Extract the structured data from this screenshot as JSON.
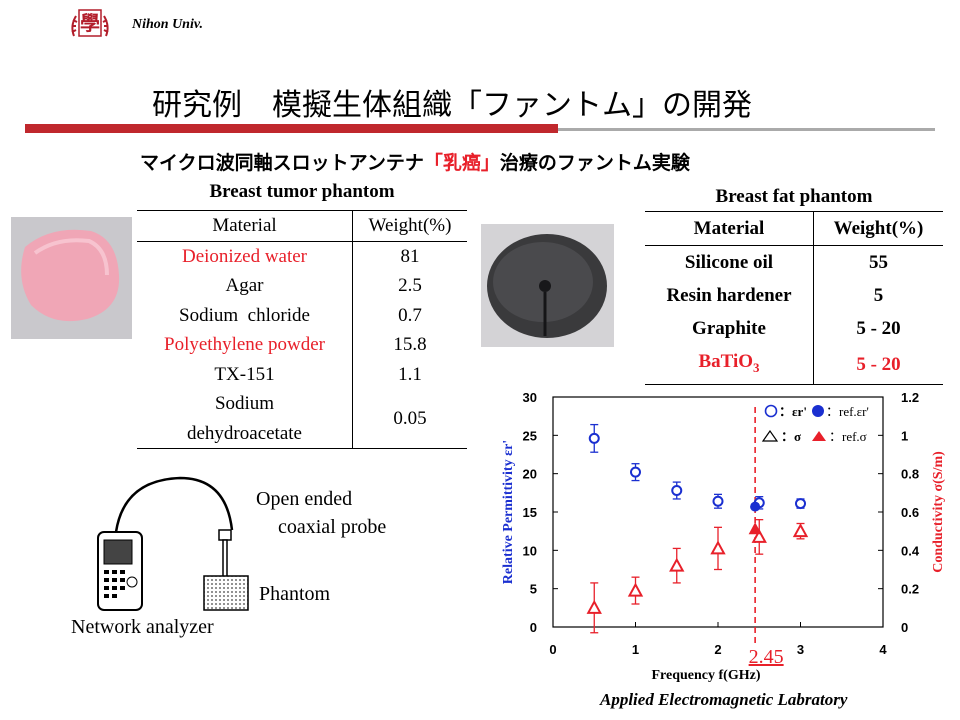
{
  "header": {
    "institution": "Nihon Univ.",
    "seal_text": "學"
  },
  "title": "研究例　模擬生体組織「ファントム」の開発",
  "subtitle": {
    "before": "マイクロ波同軸スロットアンテナ",
    "highlight": "「乳癌」",
    "after": "治療のファントム実験"
  },
  "tumor_table": {
    "caption": "Breast tumor phantom",
    "headers": [
      "Material",
      "Weight(%)"
    ],
    "rows": [
      {
        "material": "Deionized water",
        "weight": "81",
        "red": true
      },
      {
        "material": "Agar",
        "weight": "2.5",
        "red": false
      },
      {
        "material": "Sodium  chloride",
        "weight": "0.7",
        "red": false
      },
      {
        "material": "Polyethylene powder",
        "weight": "15.8",
        "red": true
      },
      {
        "material": "TX-151",
        "weight": "1.1",
        "red": false
      },
      {
        "material": "Sodium dehydroacetate",
        "weight": "0.05",
        "red": false
      }
    ]
  },
  "fat_table": {
    "caption": "Breast fat phantom",
    "headers": [
      "Material",
      "Weight(%)"
    ],
    "rows": [
      {
        "material": "Silicone oil",
        "weight": "55",
        "red": false
      },
      {
        "material": "Resin hardener",
        "weight": "5",
        "red": false
      },
      {
        "material": "Graphite",
        "weight": "5 - 20",
        "red": false
      },
      {
        "material": "BaTiO",
        "sub": "3",
        "weight": "5 - 20",
        "red": true
      }
    ]
  },
  "setup": {
    "probe_label_1": "Open ended",
    "probe_label_2": "coaxial probe",
    "phantom_label": "Phantom",
    "analyzer_label": "Network analyzer"
  },
  "footer": "Applied Electromagnetic  Labratory",
  "colors": {
    "accent_red": "#e8202a",
    "blue": "#1a2fd0",
    "bar": "#c0282d"
  },
  "chart_data": {
    "type": "scatter",
    "xlabel": "Frequency f(GHz)",
    "ylabel_left": "Relative Permittivity εr'",
    "ylabel_right": "Conductivity σ(S/m)",
    "xlim": [
      0,
      4
    ],
    "ylim_left": [
      0,
      30
    ],
    "ylim_right": [
      0,
      1.2
    ],
    "xticks": [
      "0",
      "1",
      "2",
      "3",
      "4"
    ],
    "yticks_left": [
      "0",
      "5",
      "10",
      "15",
      "20",
      "25",
      "30"
    ],
    "yticks_right": [
      "0",
      "0.2",
      "0.4",
      "0.6",
      "0.8",
      "1",
      "1.2"
    ],
    "marker_line": {
      "x": 2.45,
      "label": "2.45"
    },
    "legend": [
      "：εr'",
      "：ref.εr'",
      "：σ",
      "：ref.σ"
    ],
    "series": [
      {
        "name": "εr'",
        "axis": "left",
        "marker": "open-circle",
        "color": "#1a2fd0",
        "x": [
          0.5,
          1.0,
          1.5,
          2.0,
          2.5,
          3.0
        ],
        "y": [
          24.6,
          20.2,
          17.8,
          16.4,
          16.2,
          16.1
        ],
        "err": [
          1.8,
          1.1,
          1.1,
          0.9,
          0.8,
          0.6
        ]
      },
      {
        "name": "ref.εr'",
        "axis": "left",
        "marker": "filled-circle",
        "color": "#1a2fd0",
        "x": [
          2.45
        ],
        "y": [
          15.7
        ],
        "err": [
          0
        ]
      },
      {
        "name": "σ",
        "axis": "right",
        "marker": "open-triangle",
        "color": "#e8202a",
        "x": [
          0.5,
          1.0,
          1.5,
          2.0,
          2.5,
          3.0
        ],
        "y": [
          0.1,
          0.19,
          0.32,
          0.41,
          0.47,
          0.5
        ],
        "err": [
          0.13,
          0.07,
          0.09,
          0.11,
          0.09,
          0.04
        ]
      },
      {
        "name": "ref.σ",
        "axis": "right",
        "marker": "filled-triangle",
        "color": "#e8202a",
        "x": [
          2.45
        ],
        "y": [
          0.51
        ],
        "err": [
          0
        ]
      }
    ]
  }
}
